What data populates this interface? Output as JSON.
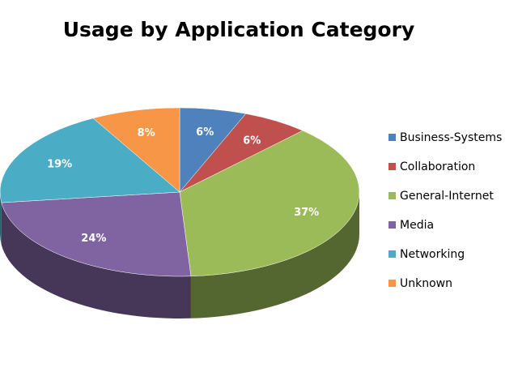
{
  "chart_data": {
    "type": "pie3d",
    "title": "Usage by Application Category",
    "categories": [
      "Business-Systems",
      "Collaboration",
      "General-Internet",
      "Media",
      "Networking",
      "Unknown"
    ],
    "values": [
      6,
      6,
      37,
      24,
      19,
      8
    ],
    "value_labels": [
      "6%",
      "6%",
      "37%",
      "24%",
      "19%",
      "8%"
    ],
    "colors": [
      "#4f81bd",
      "#c0504d",
      "#9bbb59",
      "#8064a2",
      "#4bacc6",
      "#f79646"
    ],
    "legend": "right"
  }
}
